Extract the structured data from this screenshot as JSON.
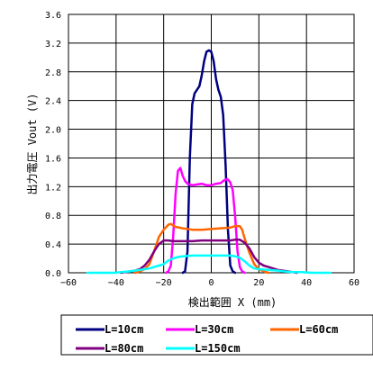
{
  "chart_data": {
    "type": "line",
    "title": "",
    "xlabel": "検出範囲 X (mm)",
    "ylabel": "出力電圧 Vout (V)",
    "xlim": [
      -60,
      60
    ],
    "ylim": [
      0.0,
      3.6
    ],
    "x_ticks": [
      "−60",
      "−40",
      "−20",
      "0",
      "20",
      "40",
      "60"
    ],
    "y_ticks": [
      "0.0",
      "0.4",
      "0.8",
      "1.2",
      "1.6",
      "2.0",
      "2.4",
      "2.8",
      "3.2",
      "3.6"
    ],
    "grid": true,
    "legend_position": "bottom",
    "series": [
      {
        "name": "L=10cm",
        "color": "#000080",
        "points": [
          [
            -12,
            0
          ],
          [
            -11,
            0.02
          ],
          [
            -10,
            0.3
          ],
          [
            -9,
            1.6
          ],
          [
            -8,
            2.35
          ],
          [
            -7,
            2.5
          ],
          [
            -6,
            2.55
          ],
          [
            -5,
            2.6
          ],
          [
            -4,
            2.75
          ],
          [
            -3,
            2.95
          ],
          [
            -2,
            3.08
          ],
          [
            -1,
            3.1
          ],
          [
            0,
            3.08
          ],
          [
            1,
            2.95
          ],
          [
            2,
            2.7
          ],
          [
            3,
            2.55
          ],
          [
            4,
            2.45
          ],
          [
            5,
            2.2
          ],
          [
            6,
            1.5
          ],
          [
            7,
            0.6
          ],
          [
            8,
            0.1
          ],
          [
            9,
            0.02
          ],
          [
            10,
            0
          ]
        ]
      },
      {
        "name": "L=30cm",
        "color": "#ff00ff",
        "points": [
          [
            -19,
            0
          ],
          [
            -18,
            0.02
          ],
          [
            -17,
            0.1
          ],
          [
            -16,
            0.5
          ],
          [
            -15,
            1.1
          ],
          [
            -14,
            1.42
          ],
          [
            -13,
            1.46
          ],
          [
            -12,
            1.35
          ],
          [
            -11,
            1.28
          ],
          [
            -10,
            1.24
          ],
          [
            -8,
            1.22
          ],
          [
            -6,
            1.23
          ],
          [
            -4,
            1.24
          ],
          [
            -2,
            1.22
          ],
          [
            0,
            1.22
          ],
          [
            2,
            1.24
          ],
          [
            4,
            1.25
          ],
          [
            5,
            1.28
          ],
          [
            6,
            1.3
          ],
          [
            7,
            1.3
          ],
          [
            8,
            1.26
          ],
          [
            9,
            1.15
          ],
          [
            10,
            0.8
          ],
          [
            11,
            0.3
          ],
          [
            12,
            0.08
          ],
          [
            13,
            0.02
          ],
          [
            14,
            0
          ]
        ]
      },
      {
        "name": "L=60cm",
        "color": "#ff6600",
        "points": [
          [
            -32,
            0
          ],
          [
            -30,
            0.02
          ],
          [
            -28,
            0.05
          ],
          [
            -26,
            0.12
          ],
          [
            -24,
            0.3
          ],
          [
            -22,
            0.5
          ],
          [
            -20,
            0.6
          ],
          [
            -18,
            0.67
          ],
          [
            -17,
            0.68
          ],
          [
            -15,
            0.64
          ],
          [
            -12,
            0.62
          ],
          [
            -8,
            0.6
          ],
          [
            -4,
            0.6
          ],
          [
            0,
            0.61
          ],
          [
            4,
            0.62
          ],
          [
            8,
            0.63
          ],
          [
            10,
            0.65
          ],
          [
            12,
            0.65
          ],
          [
            13,
            0.6
          ],
          [
            14,
            0.48
          ],
          [
            16,
            0.28
          ],
          [
            18,
            0.12
          ],
          [
            20,
            0.05
          ],
          [
            22,
            0.02
          ],
          [
            24,
            0
          ]
        ]
      },
      {
        "name": "L=80cm",
        "color": "#800080",
        "points": [
          [
            -38,
            0
          ],
          [
            -36,
            0.01
          ],
          [
            -34,
            0.02
          ],
          [
            -32,
            0.03
          ],
          [
            -30,
            0.05
          ],
          [
            -28,
            0.1
          ],
          [
            -26,
            0.18
          ],
          [
            -24,
            0.3
          ],
          [
            -22,
            0.4
          ],
          [
            -20,
            0.45
          ],
          [
            -18,
            0.45
          ],
          [
            -16,
            0.44
          ],
          [
            -12,
            0.44
          ],
          [
            -8,
            0.44
          ],
          [
            -4,
            0.45
          ],
          [
            0,
            0.45
          ],
          [
            4,
            0.45
          ],
          [
            8,
            0.45
          ],
          [
            10,
            0.46
          ],
          [
            12,
            0.46
          ],
          [
            14,
            0.42
          ],
          [
            16,
            0.34
          ],
          [
            18,
            0.22
          ],
          [
            20,
            0.14
          ],
          [
            22,
            0.1
          ],
          [
            24,
            0.08
          ],
          [
            26,
            0.06
          ],
          [
            28,
            0.04
          ],
          [
            30,
            0.03
          ],
          [
            32,
            0.02
          ],
          [
            34,
            0.01
          ],
          [
            36,
            0
          ]
        ]
      },
      {
        "name": "L=150cm",
        "color": "#00ffff",
        "points": [
          [
            -52,
            0
          ],
          [
            -40,
            0
          ],
          [
            -38,
            0.01
          ],
          [
            -34,
            0.02
          ],
          [
            -30,
            0.04
          ],
          [
            -26,
            0.06
          ],
          [
            -22,
            0.1
          ],
          [
            -20,
            0.12
          ],
          [
            -18,
            0.17
          ],
          [
            -16,
            0.2
          ],
          [
            -14,
            0.22
          ],
          [
            -12,
            0.23
          ],
          [
            -8,
            0.24
          ],
          [
            -4,
            0.24
          ],
          [
            0,
            0.24
          ],
          [
            4,
            0.24
          ],
          [
            8,
            0.24
          ],
          [
            10,
            0.23
          ],
          [
            12,
            0.21
          ],
          [
            14,
            0.16
          ],
          [
            16,
            0.1
          ],
          [
            18,
            0.06
          ],
          [
            20,
            0.05
          ],
          [
            24,
            0.04
          ],
          [
            28,
            0.03
          ],
          [
            30,
            0.02
          ],
          [
            34,
            0.01
          ],
          [
            38,
            0.01
          ],
          [
            42,
            0
          ],
          [
            50,
            0
          ]
        ]
      }
    ]
  }
}
